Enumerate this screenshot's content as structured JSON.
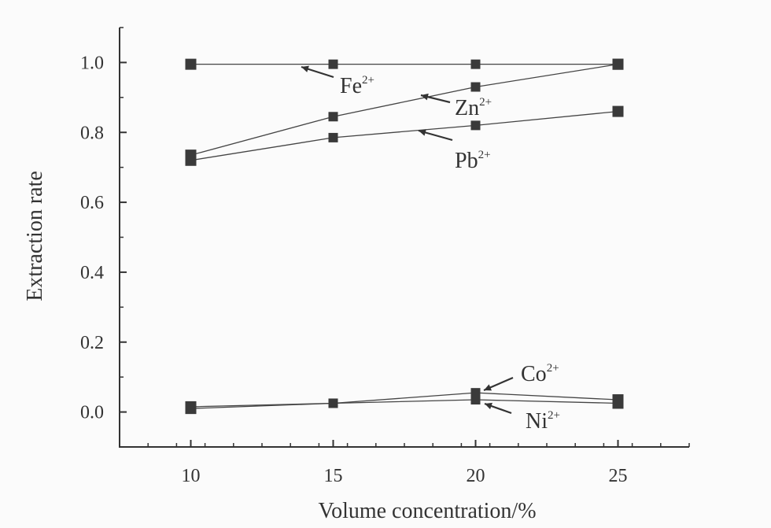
{
  "chart_data": {
    "type": "line",
    "title": "",
    "xlabel": "Volume concentration/%",
    "ylabel": "Extraction rate",
    "x": [
      10,
      15,
      20,
      25
    ],
    "xticks": [
      10,
      15,
      20,
      25
    ],
    "yticks": [
      0.0,
      0.2,
      0.4,
      0.6,
      0.8,
      1.0
    ],
    "xlim": [
      7.5,
      27.5
    ],
    "ylim": [
      -0.1,
      1.1
    ],
    "grid": false,
    "legend": "none",
    "series": [
      {
        "name": "Fe",
        "charge": "2+",
        "values": [
          0.995,
          0.995,
          0.995,
          0.995
        ]
      },
      {
        "name": "Zn",
        "charge": "2+",
        "values": [
          0.735,
          0.845,
          0.93,
          0.995
        ]
      },
      {
        "name": "Pb",
        "charge": "2+",
        "values": [
          0.72,
          0.785,
          0.82,
          0.86
        ]
      },
      {
        "name": "Co",
        "charge": "2+",
        "values": [
          0.01,
          0.025,
          0.055,
          0.035
        ]
      },
      {
        "name": "Ni",
        "charge": "2+",
        "values": [
          0.015,
          0.025,
          0.035,
          0.025
        ]
      }
    ]
  }
}
